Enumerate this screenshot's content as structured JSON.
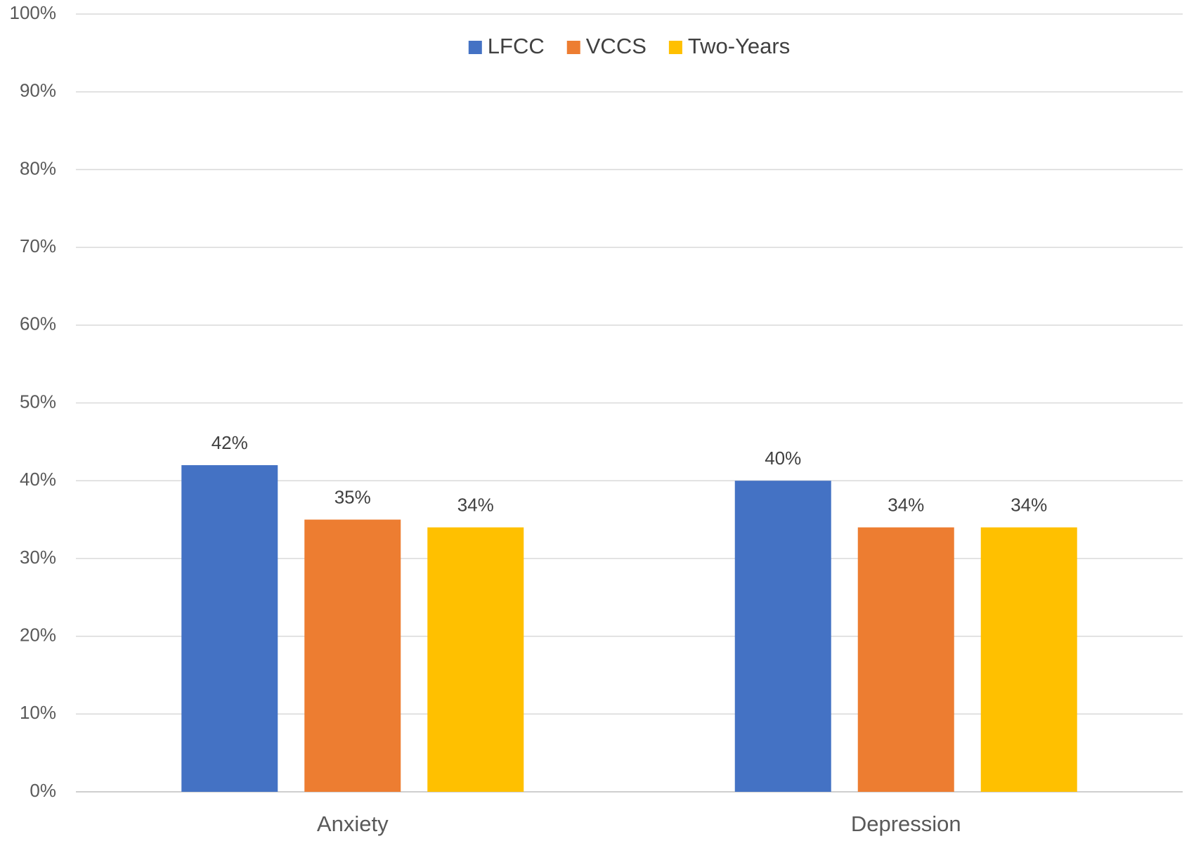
{
  "chart_data": {
    "type": "bar",
    "categories": [
      "Anxiety",
      "Depression"
    ],
    "series": [
      {
        "name": "LFCC",
        "color": "#4472c4",
        "values": [
          42,
          40
        ],
        "value_labels": [
          "42%",
          "40%"
        ]
      },
      {
        "name": "VCCS",
        "color": "#ed7d31",
        "values": [
          35,
          34
        ],
        "value_labels": [
          "35%",
          "34%"
        ]
      },
      {
        "name": "Two-Years",
        "color": "#ffc000",
        "values": [
          34,
          34
        ],
        "value_labels": [
          "34%",
          "34%"
        ]
      }
    ],
    "ylim": [
      0,
      100
    ],
    "yticks": [
      {
        "value": 0,
        "label": "0%"
      },
      {
        "value": 10,
        "label": "10%"
      },
      {
        "value": 20,
        "label": "20%"
      },
      {
        "value": 30,
        "label": "30%"
      },
      {
        "value": 40,
        "label": "40%"
      },
      {
        "value": 50,
        "label": "50%"
      },
      {
        "value": 60,
        "label": "60%"
      },
      {
        "value": 70,
        "label": "70%"
      },
      {
        "value": 80,
        "label": "80%"
      },
      {
        "value": 90,
        "label": "90%"
      },
      {
        "value": 100,
        "label": "100%"
      }
    ],
    "grid": true,
    "legend": "top"
  }
}
